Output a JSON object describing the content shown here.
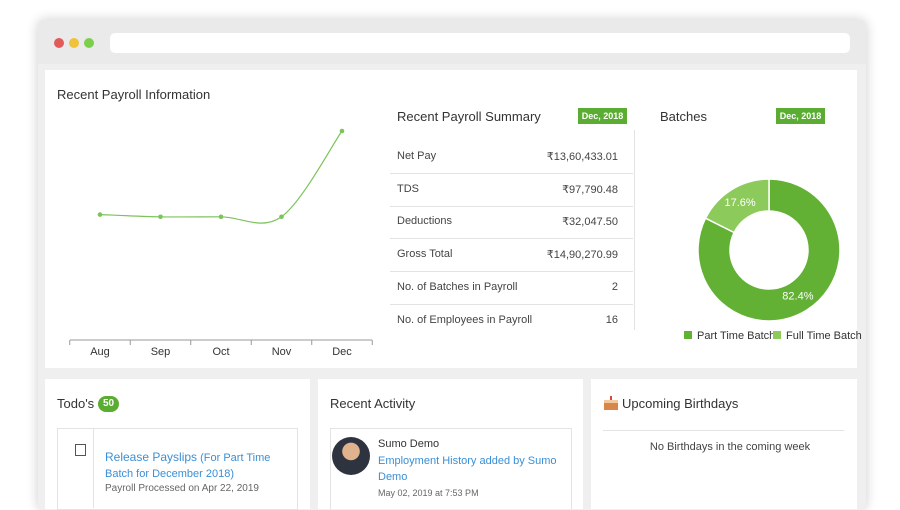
{
  "chart_data": [
    {
      "type": "line",
      "title": "Recent Payroll Information",
      "categories": [
        "Aug",
        "Sep",
        "Oct",
        "Nov",
        "Dec"
      ],
      "values": [
        57,
        56,
        56,
        56,
        95
      ],
      "color": "#7cc35a",
      "ylim": [
        0,
        100
      ]
    },
    {
      "type": "donut",
      "title": "Batches",
      "categories": [
        "Part Time Batch",
        "Full Time Batch"
      ],
      "values": [
        82.4,
        17.6
      ],
      "value_labels": [
        "82.4%",
        "17.6%"
      ],
      "colors": [
        "#62b135",
        "#8dca5c"
      ],
      "legend": "bottom"
    }
  ],
  "summary": {
    "title": "Recent Payroll Summary",
    "badge": "Dec, 2018",
    "rows": [
      [
        "Net Pay",
        "₹13,60,433.01"
      ],
      [
        "TDS",
        "₹97,790.48"
      ],
      [
        "Deductions",
        "₹32,047.50"
      ],
      [
        "Gross Total",
        "₹14,90,270.99"
      ],
      [
        "No. of Batches in Payroll",
        2
      ],
      [
        "No. of Employees in Payroll",
        16
      ]
    ]
  },
  "batches": {
    "badge": "Dec, 2018"
  },
  "todos": {
    "title": "Todo's",
    "count": 50,
    "items": [
      {
        "link": "Release Payslips",
        "note": "(For Part Time Batch for December 2018)",
        "status": "Payroll Processed on Apr 22, 2019"
      }
    ]
  },
  "activity": {
    "title": "Recent Activity",
    "items": [
      {
        "user": "Sumo Demo",
        "action": "Employment History added by Sumo Demo",
        "time": "May 02, 2019 at 7:53 PM"
      }
    ]
  },
  "birthdays": {
    "title": "Upcoming Birthdays",
    "empty": "No Birthdays in the coming week"
  }
}
